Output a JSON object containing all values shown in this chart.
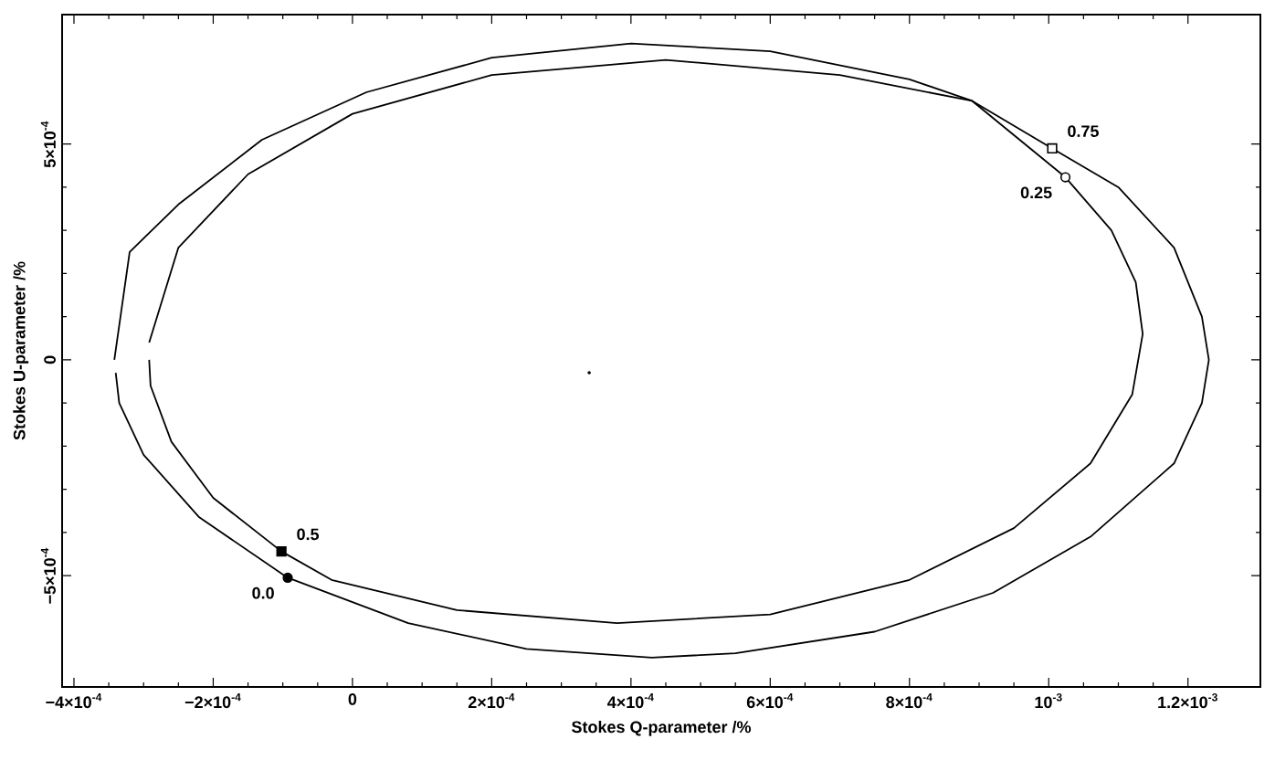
{
  "chart_data": {
    "type": "line",
    "xlabel": "Stokes Q-parameter /%",
    "ylabel": "Stokes U-parameter /%",
    "xlim": [
      -0.000417,
      0.001304
    ],
    "ylim": [
      -0.000758,
      0.0008
    ],
    "xticks": [
      {
        "value": -0.0004,
        "label": "−4×10$^{-4}$"
      },
      {
        "value": -0.0002,
        "label": "−2×10$^{-4}$"
      },
      {
        "value": 0,
        "label": "0"
      },
      {
        "value": 0.0002,
        "label": "2×10$^{-4}$"
      },
      {
        "value": 0.0004,
        "label": "4×10$^{-4}$"
      },
      {
        "value": 0.0006,
        "label": "6×10$^{-4}$"
      },
      {
        "value": 0.0008,
        "label": "8×10$^{-4}$"
      },
      {
        "value": 0.001,
        "label": "10$^{-3}$"
      },
      {
        "value": 0.0012,
        "label": "1.2×10$^{-3}$"
      }
    ],
    "yticks": [
      {
        "value": -0.0005,
        "label": "−5×10$^{-4}$"
      },
      {
        "value": 0,
        "label": "0"
      },
      {
        "value": 0.0005,
        "label": "5×10$^{-4}$"
      }
    ],
    "grid": false,
    "series": [
      {
        "color": "#000000",
        "marker": "none",
        "x": [
          -0.000342,
          -0.00032,
          -0.00025,
          -0.00013,
          2e-05,
          0.0002,
          0.0004,
          0.0006,
          0.0008,
          0.00089,
          0.001005,
          0.0011,
          0.00118,
          0.00122,
          0.00123,
          0.00122,
          0.00118,
          0.00106,
          0.00092,
          0.00075,
          0.00055,
          0.00043,
          0.00025,
          8e-05,
          -9.3e-05,
          -0.00022,
          -0.0003,
          -0.000335,
          -0.00034
        ],
        "values": [
          0.0,
          0.00025,
          0.00036,
          0.00051,
          0.00062,
          0.0007,
          0.000733,
          0.000715,
          0.00065,
          0.0006,
          0.00049,
          0.0004,
          0.00026,
          0.0001,
          0.0,
          -0.0001,
          -0.00024,
          -0.00041,
          -0.00054,
          -0.00063,
          -0.00068,
          -0.00069,
          -0.00067,
          -0.00061,
          -0.000505,
          -0.000365,
          -0.00022,
          -0.0001,
          -3e-05
        ]
      },
      {
        "color": "#000000",
        "marker": "none",
        "x": [
          -0.000292,
          -0.00025,
          -0.00015,
          0.0,
          0.0002,
          0.00045,
          0.0007,
          0.00089,
          0.001024,
          0.00109,
          0.001125,
          0.001135,
          0.00112,
          0.00106,
          0.00095,
          0.0008,
          0.0006,
          0.00038,
          0.00015,
          -3e-05,
          -0.000102,
          -0.0002,
          -0.00026,
          -0.00029,
          -0.000292
        ],
        "values": [
          4e-05,
          0.00026,
          0.00043,
          0.00057,
          0.00066,
          0.000695,
          0.00066,
          0.0006,
          0.000423,
          0.0003,
          0.00018,
          6e-05,
          -8e-05,
          -0.00024,
          -0.00039,
          -0.00051,
          -0.00059,
          -0.00061,
          -0.00058,
          -0.00051,
          -0.000444,
          -0.00032,
          -0.00019,
          -6e-05,
          0.0
        ]
      },
      {
        "type": "scatter",
        "color": "#000000",
        "marker": "circle",
        "x": [
          -9.3e-05
        ],
        "values": [
          -0.000505
        ]
      },
      {
        "type": "scatter",
        "color": "#000000",
        "marker": "square",
        "x": [
          -0.000102
        ],
        "values": [
          -0.000444
        ]
      },
      {
        "type": "scatter",
        "color": "#ffffff",
        "marker": "circle",
        "x": [
          0.001024
        ],
        "values": [
          0.000423
        ]
      },
      {
        "type": "scatter",
        "color": "#ffffff",
        "marker": "square",
        "x": [
          0.001005
        ],
        "values": [
          0.00049
        ]
      },
      {
        "type": "scatter",
        "color": "#000000",
        "marker": "dot",
        "x": [
          0.00034
        ],
        "values": [
          -3e-05
        ]
      }
    ],
    "annotations": [
      {
        "text": "0.0",
        "x": -9.3e-05,
        "y": -0.000505
      },
      {
        "text": "0.5",
        "x": -0.000102,
        "y": -0.000444
      },
      {
        "text": "0.25",
        "x": 0.001024,
        "y": 0.000423
      },
      {
        "text": "0.75",
        "x": 0.001005,
        "y": 0.00049
      }
    ]
  }
}
